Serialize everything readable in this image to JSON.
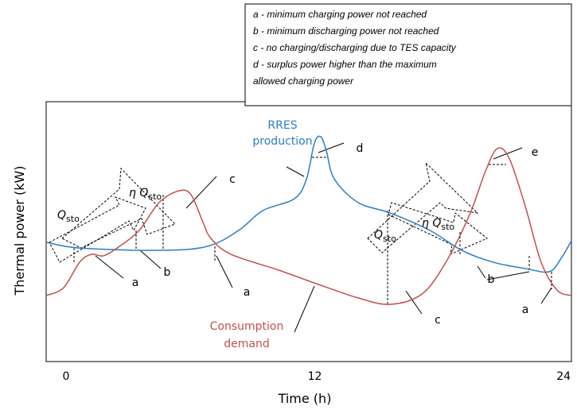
{
  "chart_data": {
    "type": "line",
    "xlabel": "Time (h)",
    "ylabel": "Thermal power (kW)",
    "xlim": [
      -0.96,
      24.38
    ],
    "xticks": [
      0,
      12,
      24
    ],
    "ylim": [
      0,
      10
    ],
    "series": [
      {
        "name": "RRES production",
        "color": "#2e7dc2",
        "x": [
          -0.96,
          0.65,
          4.49,
          6.8,
          8.33,
          9.49,
          11.02,
          11.6,
          11.98,
          12.29,
          12.56,
          12.94,
          14.09,
          15.63,
          17.55,
          19.09,
          20.62,
          22.16,
          23.31,
          23.89,
          24.38
        ],
        "values": [
          4.59,
          4.37,
          4.28,
          4.43,
          5.05,
          5.81,
          6.27,
          7.03,
          8.41,
          8.65,
          8.1,
          7.03,
          6.12,
          5.72,
          5.05,
          4.28,
          3.82,
          3.58,
          3.46,
          3.98,
          4.65
        ]
      },
      {
        "name": "Consumption demand",
        "color": "#c0504d",
        "x": [
          -0.96,
          -0.12,
          0.65,
          1.23,
          1.8,
          2.57,
          3.53,
          4.49,
          5.45,
          6.03,
          6.61,
          6.99,
          7.95,
          10.25,
          12.17,
          14.09,
          15.63,
          17.17,
          18.32,
          19.47,
          20.24,
          20.81,
          21.39,
          22.16,
          22.92,
          23.69,
          24.38
        ],
        "values": [
          2.54,
          2.84,
          3.82,
          4.13,
          4.07,
          4.43,
          5.05,
          6.12,
          6.57,
          6.42,
          5.35,
          4.74,
          4.13,
          3.52,
          2.97,
          2.45,
          2.2,
          2.6,
          3.82,
          5.66,
          7.34,
          8.2,
          7.8,
          5.96,
          3.82,
          2.75,
          2.54
        ]
      }
    ],
    "series_labels": [
      [
        "RRES",
        "production"
      ],
      [
        "Consumption",
        "demand"
      ]
    ],
    "letters": [
      "a",
      "b",
      "c",
      "a",
      "d",
      "e",
      "c",
      "b",
      "a"
    ],
    "storage_labels": [
      {
        "main": "Q",
        "sub": "sto"
      },
      {
        "main": "η Q",
        "sub": "sto"
      },
      {
        "main": "Q",
        "sub": "sto"
      },
      {
        "main": "η Q",
        "sub": "sto"
      }
    ],
    "legend_lines": [
      "a - minimum charging power not reached",
      "b - minimum discharging power not reached",
      "c - no charging/discharging due to TES capacity",
      "d - surplus power higher than the maximum",
      "allowed charging power"
    ]
  }
}
